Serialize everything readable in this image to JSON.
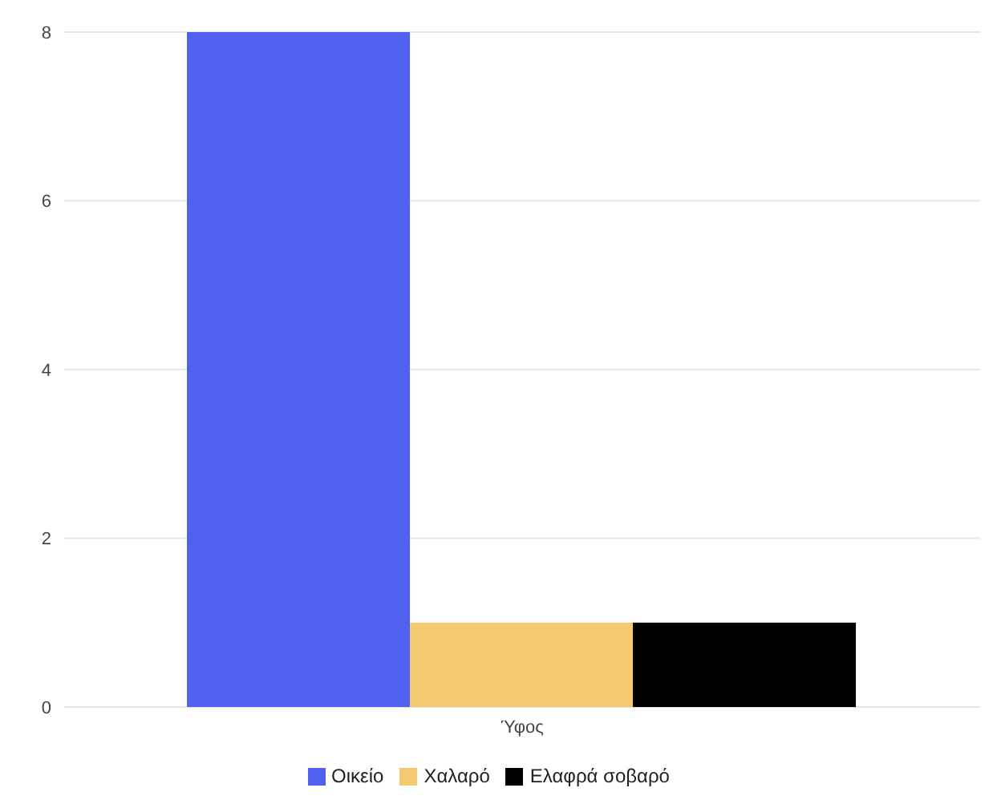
{
  "chart_data": {
    "type": "bar",
    "categories": [
      "Ύφος"
    ],
    "series": [
      {
        "name": "Οικείο",
        "color": "#5061ef",
        "values": [
          8
        ]
      },
      {
        "name": "Χαλαρό",
        "color": "#f2c96f",
        "values": [
          1
        ]
      },
      {
        "name": "Ελαφρά σοβαρό",
        "color": "#000000",
        "values": [
          1
        ]
      }
    ],
    "ylim": [
      0,
      8
    ],
    "yticks": [
      0,
      2,
      4,
      6,
      8
    ],
    "grid": "y",
    "legend": "bottom"
  }
}
